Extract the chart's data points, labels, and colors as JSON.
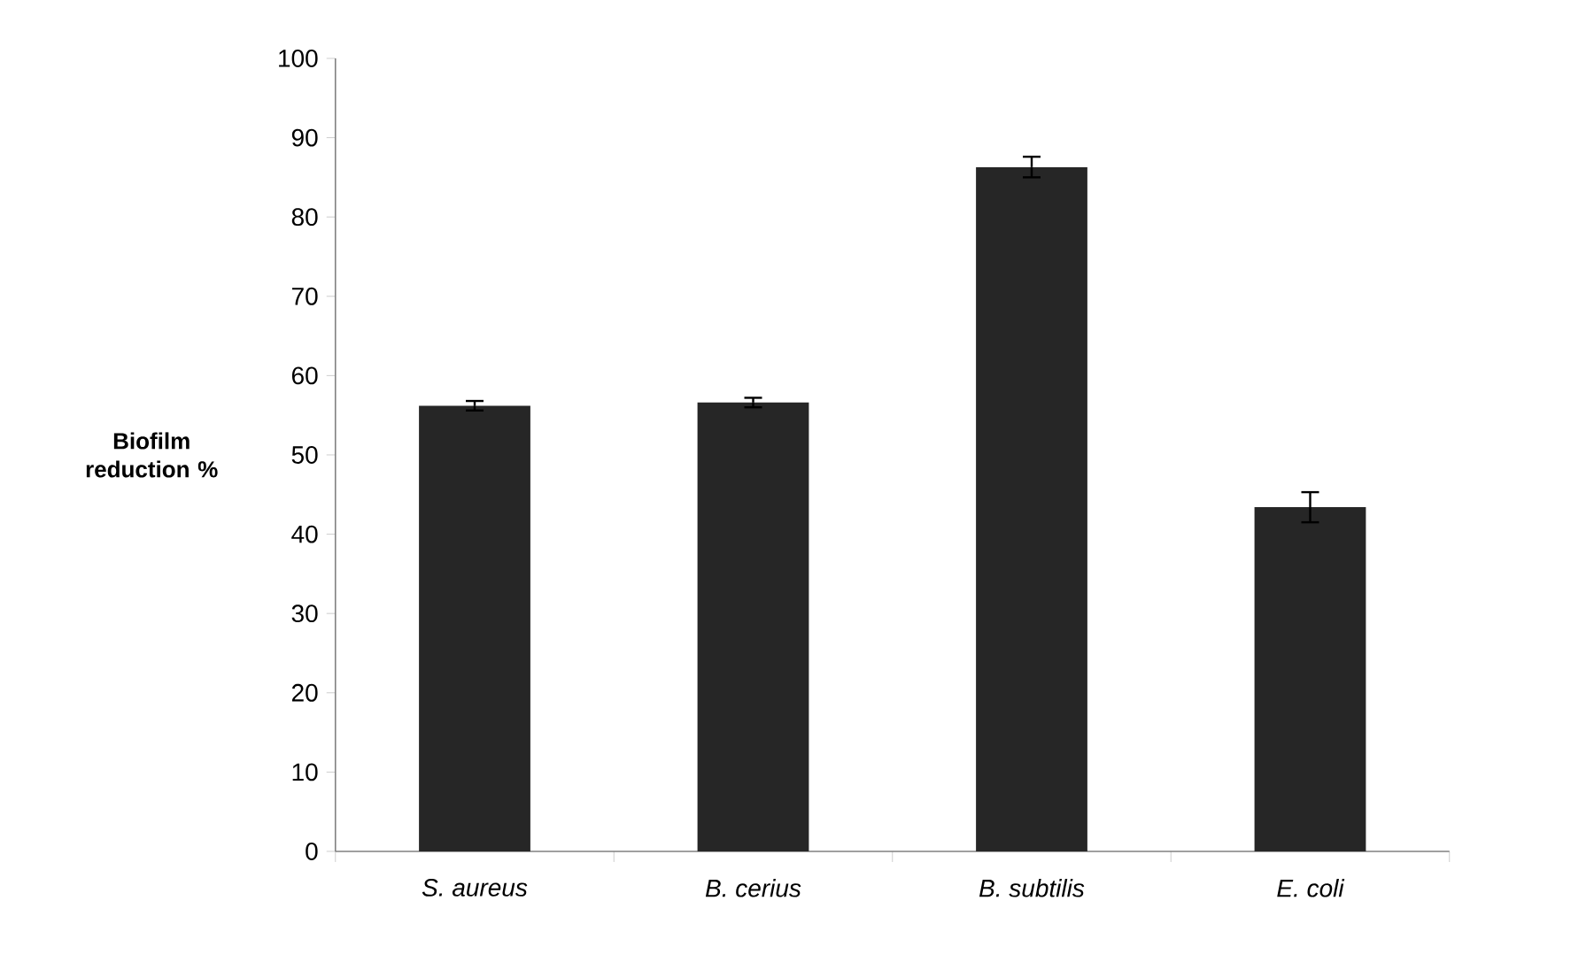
{
  "chart_data": {
    "type": "bar",
    "ylabel": "Biofilm reduction %",
    "categories": [
      "S. aureus",
      "B. cerius",
      "B. subtilis",
      "E. coli"
    ],
    "values": [
      56.2,
      56.6,
      86.3,
      43.4
    ],
    "errors": [
      0.6,
      0.6,
      1.3,
      1.9
    ],
    "color": "#262626",
    "ylim": [
      0,
      100
    ],
    "yticks": [
      0,
      10,
      20,
      30,
      40,
      50,
      60,
      70,
      80,
      90,
      100
    ],
    "grid": false
  }
}
